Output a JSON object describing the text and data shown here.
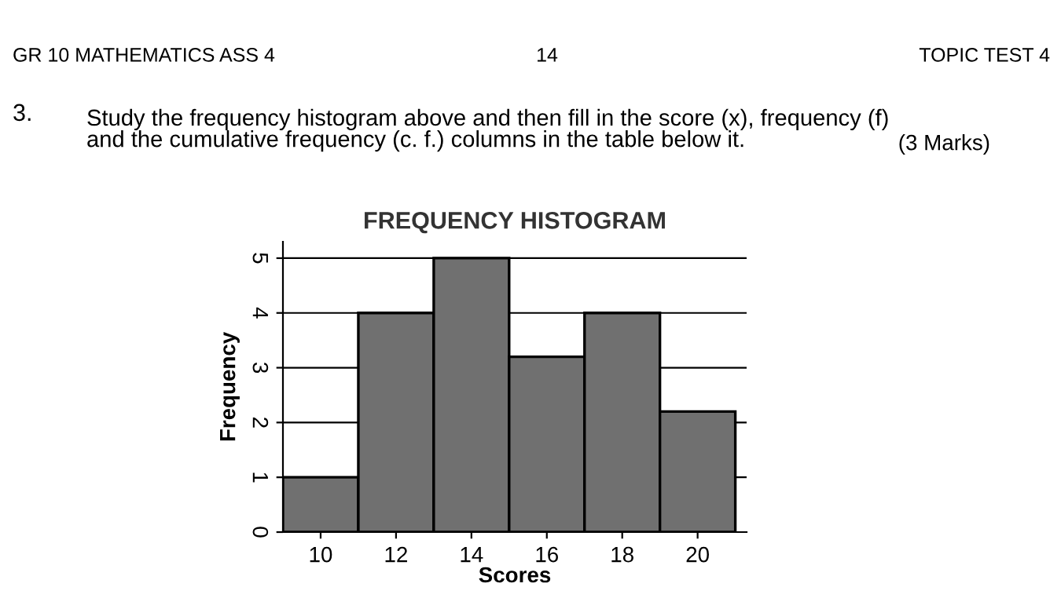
{
  "chart_data": {
    "type": "histogram",
    "title": "FREQUENCY HISTOGRAM",
    "xlabel": "Scores",
    "ylabel": "Frequency",
    "bins": [
      9,
      11,
      13,
      15,
      17,
      19,
      21
    ],
    "values": [
      1,
      4,
      5,
      3.2,
      4,
      2.2
    ],
    "color": "#707070",
    "xlim": [
      9,
      21.3
    ],
    "xticks": [
      10,
      12,
      14,
      16,
      18,
      20
    ],
    "ylim": [
      0,
      5.3
    ],
    "yticks": [
      0,
      1,
      2,
      3,
      4,
      5
    ],
    "grid": "y",
    "annotations": [
      "GR 10 MATHEMATICS ASS 4",
      "14",
      "TOPIC TEST 4",
      "3.",
      "Study the frequency histogram above and then fill in the score (x), frequency (f)\nand the cumulative frequency (c. f.) columns in the table below it.",
      "(3 Marks)"
    ]
  }
}
